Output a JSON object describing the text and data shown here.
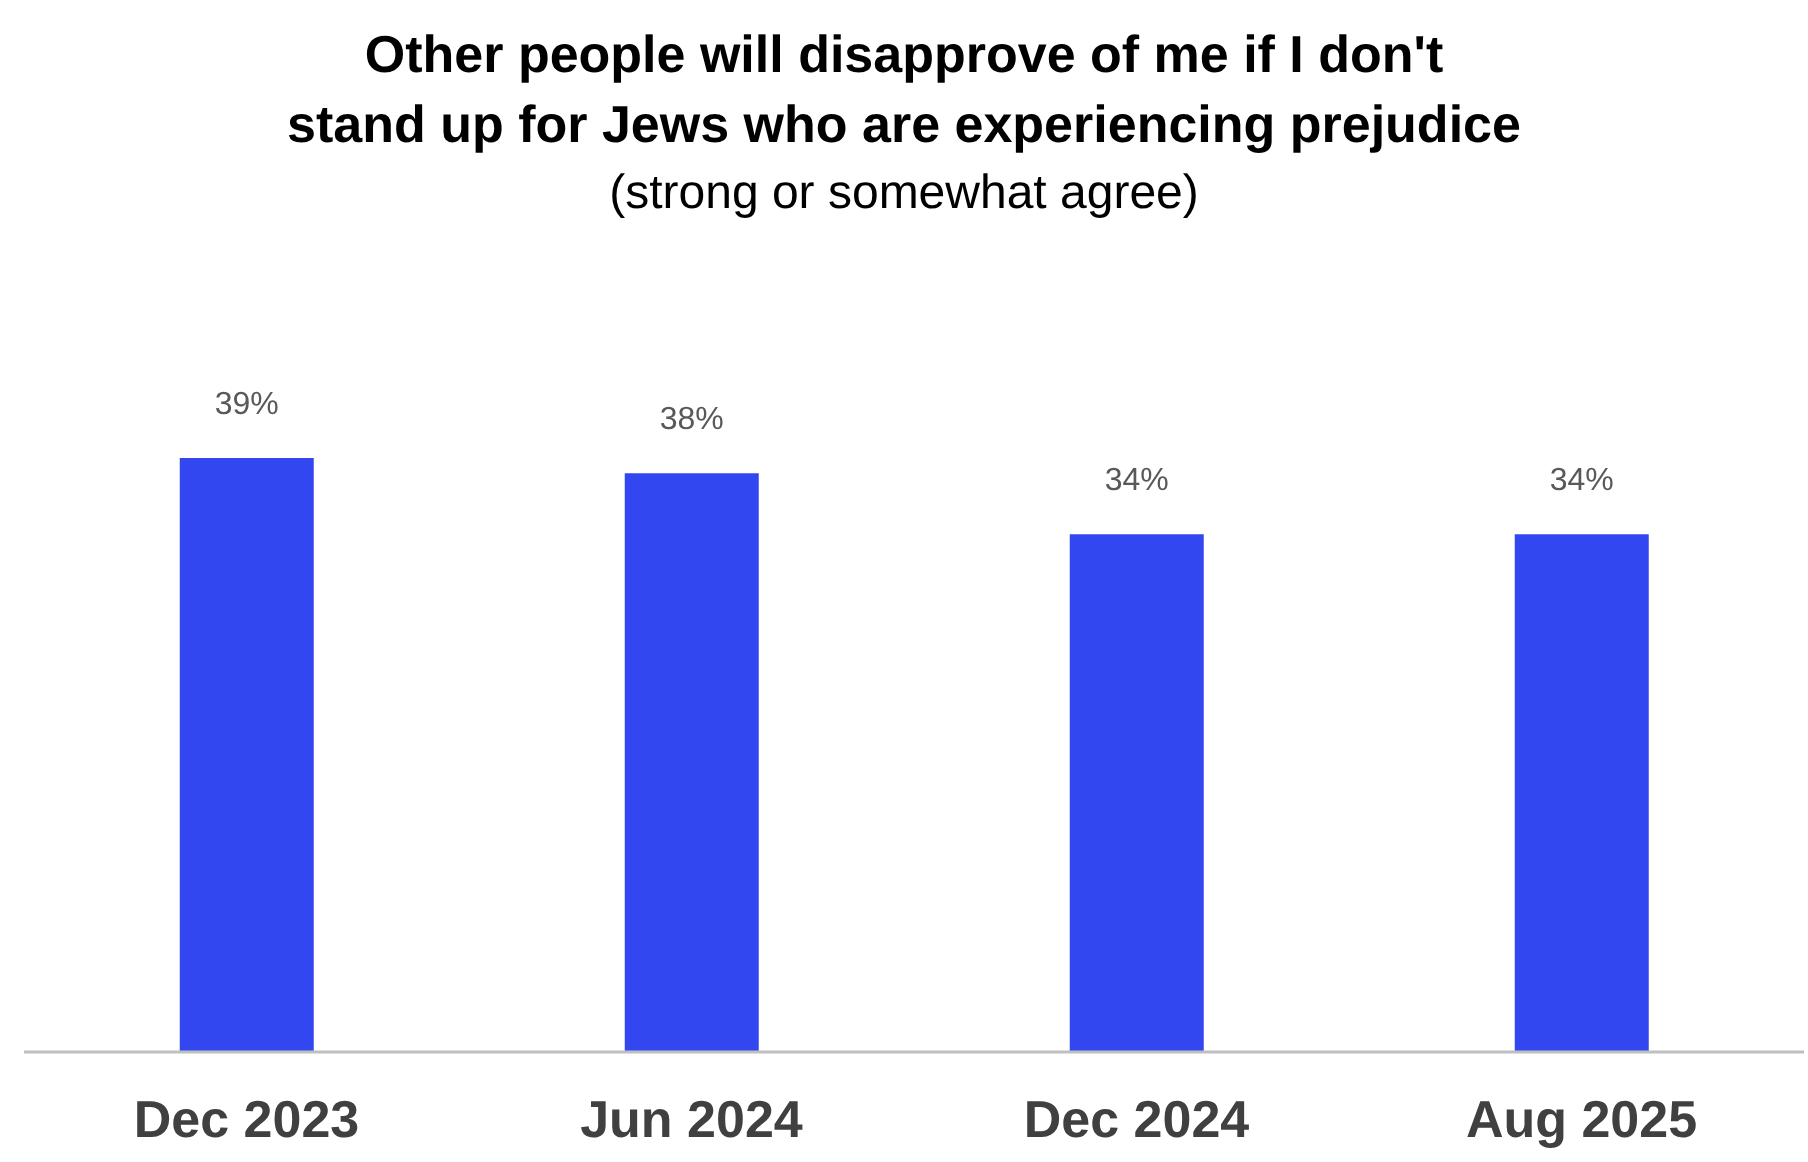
{
  "chart_data": {
    "type": "bar",
    "title": "Other people will disapprove of me if I don't\nstand up for Jews who are experiencing prejudice",
    "subtitle": "(strong or somewhat agree)",
    "categories": [
      "Dec 2023",
      "Jun 2024",
      "Dec 2024",
      "Aug 2025"
    ],
    "values": [
      39,
      38,
      34,
      34
    ],
    "value_labels": [
      "39%",
      "38%",
      "34%",
      "34%"
    ],
    "color": "#3347f0"
  }
}
